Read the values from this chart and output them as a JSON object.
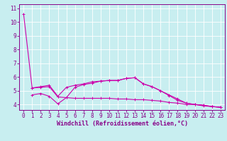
{
  "title": "",
  "xlabel": "Windchill (Refroidissement éolien,°C)",
  "ylabel": "",
  "bg_color": "#c8eef0",
  "grid_color": "#ffffff",
  "line_color": "#cc00aa",
  "xlim": [
    -0.5,
    23.5
  ],
  "ylim": [
    3.6,
    11.3
  ],
  "yticks": [
    4,
    5,
    6,
    7,
    8,
    9,
    10,
    11
  ],
  "xticks": [
    0,
    1,
    2,
    3,
    4,
    5,
    6,
    7,
    8,
    9,
    10,
    11,
    12,
    13,
    14,
    15,
    16,
    17,
    18,
    19,
    20,
    21,
    22,
    23
  ],
  "series1": {
    "x": [
      0,
      1,
      2,
      3,
      4,
      5,
      6,
      7,
      8,
      9,
      10,
      11,
      12,
      13,
      14,
      15,
      16,
      17,
      18,
      19,
      20,
      21,
      22,
      23
    ],
    "y": [
      10.6,
      5.2,
      5.3,
      5.4,
      4.6,
      5.25,
      5.4,
      5.5,
      5.65,
      5.7,
      5.75,
      5.75,
      5.9,
      5.95,
      5.5,
      5.3,
      5.0,
      4.7,
      4.4,
      4.1,
      4.0,
      3.9,
      3.85,
      3.8
    ]
  },
  "series2": {
    "x": [
      1,
      2,
      3,
      4,
      5,
      6,
      7,
      8,
      9,
      10,
      11,
      12,
      13,
      14,
      15,
      16,
      17,
      18,
      19,
      20,
      21,
      22,
      23
    ],
    "y": [
      4.7,
      4.8,
      4.6,
      4.05,
      4.5,
      4.45,
      4.45,
      4.45,
      4.45,
      4.45,
      4.4,
      4.4,
      4.35,
      4.35,
      4.3,
      4.25,
      4.15,
      4.1,
      4.0,
      4.0,
      3.95,
      3.85,
      3.8
    ]
  },
  "series3": {
    "x": [
      1,
      2,
      3,
      4,
      5,
      6,
      7,
      8,
      9,
      10,
      11,
      12,
      13,
      14,
      15,
      16,
      17,
      18,
      19,
      20,
      21,
      22,
      23
    ],
    "y": [
      5.2,
      5.25,
      5.3,
      4.55,
      4.5,
      5.25,
      5.45,
      5.55,
      5.7,
      5.75,
      5.75,
      5.9,
      5.95,
      5.5,
      5.3,
      5.0,
      4.65,
      4.3,
      4.1,
      4.0,
      3.95,
      3.85,
      3.8
    ]
  },
  "tick_fontsize": 5.5,
  "xlabel_fontsize": 6.0
}
